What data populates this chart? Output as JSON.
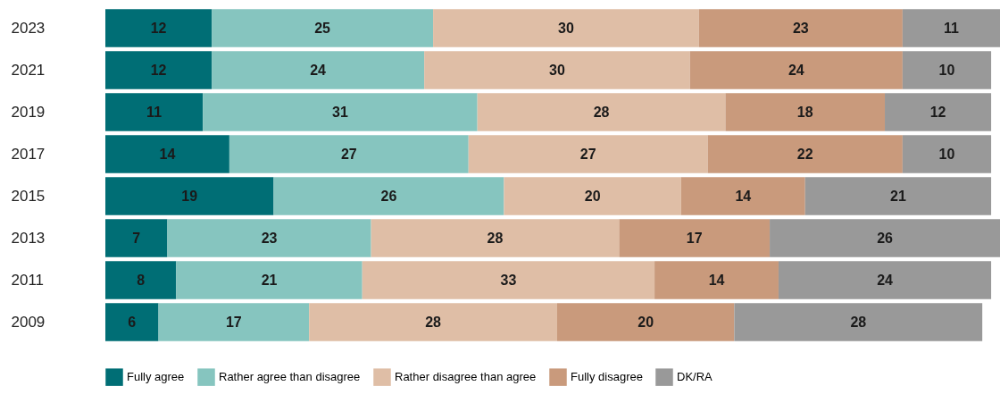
{
  "chart_data": {
    "type": "bar",
    "orientation": "horizontal",
    "stacked": true,
    "data_labels": true,
    "legend": "bottom",
    "categories": [
      "2023",
      "2021",
      "2019",
      "2017",
      "2015",
      "2013",
      "2011",
      "2009"
    ],
    "series": [
      {
        "name": "Fully agree",
        "color": "#006e75",
        "values": [
          12,
          12,
          11,
          14,
          19,
          7,
          8,
          6
        ]
      },
      {
        "name": "Rather agree than disagree",
        "color": "#86c5bf",
        "values": [
          25,
          24,
          31,
          27,
          26,
          23,
          21,
          17
        ]
      },
      {
        "name": "Rather disagree than agree",
        "color": "#dfbea6",
        "values": [
          30,
          30,
          28,
          27,
          20,
          28,
          33,
          28
        ]
      },
      {
        "name": "Fully disagree",
        "color": "#c99a7c",
        "values": [
          23,
          24,
          18,
          22,
          14,
          17,
          14,
          20
        ]
      },
      {
        "name": "DK/RA",
        "color": "#999999",
        "values": [
          11,
          10,
          12,
          10,
          21,
          26,
          24,
          28
        ]
      }
    ]
  }
}
